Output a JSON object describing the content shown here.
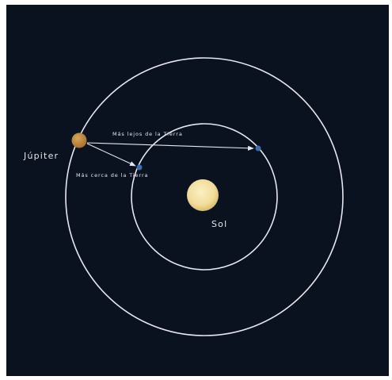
{
  "colors": {
    "background": "#0a1220",
    "orbit": "#e8e6ee",
    "sun": "#f1dc9a",
    "jupiter": "#c38a3f",
    "earth": "#3c6fb0",
    "text": "#e6e6ea"
  },
  "labels": {
    "jupiter": "Júpiter",
    "sun": "Sol",
    "farthest": "Más lejos de la Tierra",
    "closest": "Más cerca de la Tierra"
  }
}
